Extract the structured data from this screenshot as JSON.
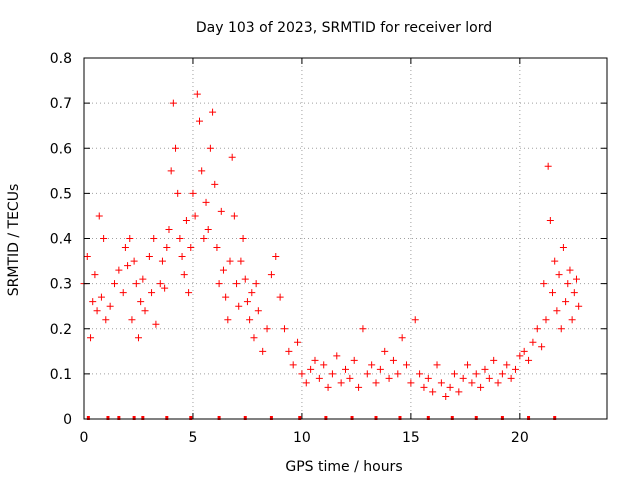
{
  "chart_data": {
    "type": "scatter",
    "title": "Day 103 of 2023, SRMTID for receiver lord",
    "xlabel": "GPS time / hours",
    "ylabel": "SRMTID / TECUs",
    "xlim": [
      0,
      24
    ],
    "ylim": [
      0,
      0.8
    ],
    "x_ticks": [
      0,
      5,
      10,
      15,
      20
    ],
    "x_tick_labels": [
      "0",
      "5",
      "10",
      "15",
      "20"
    ],
    "y_ticks": [
      0,
      0.1,
      0.2,
      0.3,
      0.4,
      0.5,
      0.6,
      0.7,
      0.8
    ],
    "y_tick_labels": [
      "0",
      "0.1",
      "0.2",
      "0.3",
      "0.4",
      "0.5",
      "0.6",
      "0.7",
      "0.8"
    ],
    "grid": true,
    "marker": "+",
    "series_color": "#ff0000",
    "flag_color": "#ff0000",
    "series": [
      {
        "name": "SRMTID",
        "x": [
          0.0,
          0.15,
          0.3,
          0.4,
          0.5,
          0.6,
          0.7,
          0.8,
          0.9,
          1.0,
          1.2,
          1.4,
          1.6,
          1.8,
          1.9,
          2.0,
          2.1,
          2.2,
          2.3,
          2.4,
          2.5,
          2.6,
          2.7,
          2.8,
          3.0,
          3.1,
          3.2,
          3.3,
          3.5,
          3.6,
          3.7,
          3.8,
          3.9,
          4.0,
          4.1,
          4.2,
          4.3,
          4.4,
          4.5,
          4.6,
          4.7,
          4.8,
          4.9,
          5.0,
          5.1,
          5.2,
          5.3,
          5.4,
          5.5,
          5.6,
          5.7,
          5.8,
          5.9,
          6.0,
          6.1,
          6.2,
          6.3,
          6.4,
          6.5,
          6.6,
          6.7,
          6.8,
          6.9,
          7.0,
          7.1,
          7.2,
          7.3,
          7.4,
          7.5,
          7.6,
          7.7,
          7.8,
          7.9,
          8.0,
          8.2,
          8.4,
          8.6,
          8.8,
          9.0,
          9.2,
          9.4,
          9.6,
          9.8,
          10.0,
          10.2,
          10.4,
          10.6,
          10.8,
          11.0,
          11.2,
          11.4,
          11.6,
          11.8,
          12.0,
          12.2,
          12.4,
          12.6,
          12.8,
          13.0,
          13.2,
          13.4,
          13.6,
          13.8,
          14.0,
          14.2,
          14.4,
          14.6,
          14.8,
          15.0,
          15.2,
          15.4,
          15.6,
          15.8,
          16.0,
          16.2,
          16.4,
          16.6,
          16.8,
          17.0,
          17.2,
          17.4,
          17.6,
          17.8,
          18.0,
          18.2,
          18.4,
          18.6,
          18.8,
          19.0,
          19.2,
          19.4,
          19.6,
          19.8,
          20.0,
          20.2,
          20.4,
          20.6,
          20.8,
          21.0,
          21.1,
          21.2,
          21.3,
          21.4,
          21.5,
          21.6,
          21.7,
          21.8,
          21.9,
          22.0,
          22.1,
          22.2,
          22.3,
          22.4,
          22.5,
          22.6,
          22.7
        ],
        "y": [
          0.3,
          0.36,
          0.18,
          0.26,
          0.32,
          0.24,
          0.45,
          0.27,
          0.4,
          0.22,
          0.25,
          0.3,
          0.33,
          0.28,
          0.38,
          0.34,
          0.4,
          0.22,
          0.35,
          0.3,
          0.18,
          0.26,
          0.31,
          0.24,
          0.36,
          0.28,
          0.4,
          0.21,
          0.3,
          0.35,
          0.29,
          0.38,
          0.42,
          0.55,
          0.7,
          0.6,
          0.5,
          0.4,
          0.36,
          0.32,
          0.44,
          0.28,
          0.38,
          0.5,
          0.45,
          0.72,
          0.66,
          0.55,
          0.4,
          0.48,
          0.42,
          0.6,
          0.68,
          0.52,
          0.38,
          0.3,
          0.46,
          0.33,
          0.27,
          0.22,
          0.35,
          0.58,
          0.45,
          0.3,
          0.25,
          0.35,
          0.4,
          0.31,
          0.26,
          0.22,
          0.28,
          0.18,
          0.3,
          0.24,
          0.15,
          0.2,
          0.32,
          0.36,
          0.27,
          0.2,
          0.15,
          0.12,
          0.17,
          0.1,
          0.08,
          0.11,
          0.13,
          0.09,
          0.12,
          0.07,
          0.1,
          0.14,
          0.08,
          0.11,
          0.09,
          0.13,
          0.07,
          0.2,
          0.1,
          0.12,
          0.08,
          0.11,
          0.15,
          0.09,
          0.13,
          0.1,
          0.18,
          0.12,
          0.08,
          0.22,
          0.1,
          0.07,
          0.09,
          0.06,
          0.12,
          0.08,
          0.05,
          0.07,
          0.1,
          0.06,
          0.09,
          0.12,
          0.08,
          0.1,
          0.07,
          0.11,
          0.09,
          0.13,
          0.08,
          0.1,
          0.12,
          0.09,
          0.11,
          0.14,
          0.15,
          0.13,
          0.17,
          0.2,
          0.16,
          0.3,
          0.22,
          0.56,
          0.44,
          0.28,
          0.35,
          0.24,
          0.32,
          0.2,
          0.38,
          0.26,
          0.3,
          0.33,
          0.22,
          0.28,
          0.31,
          0.25
        ]
      }
    ],
    "flags_y": 0,
    "flags_x": [
      0.2,
      1.1,
      1.6,
      2.3,
      2.7,
      3.8,
      4.9,
      6.2,
      7.4,
      8.6,
      9.9,
      11.1,
      12.3,
      13.4,
      14.5,
      15.8,
      16.9,
      18.0,
      19.2,
      20.4,
      21.6
    ]
  }
}
